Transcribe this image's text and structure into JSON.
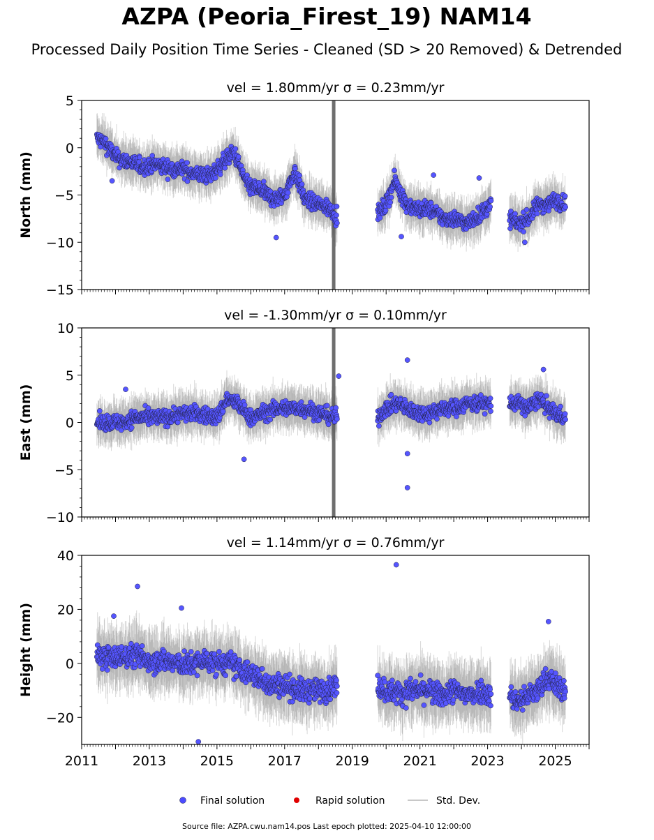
{
  "title": "AZPA (Peoria_Firest_19) NAM14",
  "subtitle": "Processed Daily Position Time Series - Cleaned (SD > 20 Removed) & Detrended",
  "footer": "Source file: AZPA.cwu.nam14.pos  Last epoch plotted: 2025-04-10 12:00:00",
  "legend": {
    "position": "bottom-center",
    "items": [
      {
        "label": "Final solution",
        "color": "#4b4bff"
      },
      {
        "label": "Rapid solution",
        "color": "#e00000"
      },
      {
        "label": "Std. Dev.",
        "color": "#c8c8c8"
      }
    ]
  },
  "colors": {
    "final": "#5555ff",
    "final_edge": "#222244",
    "std": "#8c8c8c"
  },
  "chart_data": [
    {
      "type": "scatter",
      "series": [
        {
          "name": "Final solution"
        }
      ],
      "panel_title": "vel = 1.80mm/yr   σ = 0.23mm/yr",
      "ylabel": "North (mm)",
      "xlim": [
        2011.0,
        2026.0
      ],
      "ylim": [
        -15,
        5
      ],
      "yticks": [
        -15,
        -10,
        -5,
        0,
        5
      ],
      "ytick_labels": [
        "−15",
        "−10",
        "−5",
        "0",
        "5"
      ],
      "anomaly_year": 2018.45,
      "segments": [
        {
          "x": [
            2011.45,
            2011.7,
            2012.0,
            2012.4,
            2012.8,
            2013.2,
            2013.6,
            2014.0,
            2014.4,
            2014.8,
            2015.2,
            2015.5,
            2015.9,
            2016.3,
            2016.7,
            2017.0,
            2017.3,
            2017.6,
            2018.0,
            2018.4,
            2018.55
          ],
          "y": [
            1.0,
            0.5,
            -1.0,
            -1.5,
            -2.0,
            -1.8,
            -2.2,
            -2.3,
            -2.8,
            -3.0,
            -1.5,
            -0.5,
            -4.0,
            -4.5,
            -5.5,
            -5.0,
            -2.5,
            -5.5,
            -6.0,
            -6.5,
            -7.5
          ]
        },
        {
          "x": [
            2019.75,
            2020.0,
            2020.25,
            2020.4,
            2020.6,
            2020.9,
            2021.3,
            2021.7,
            2022.0,
            2022.4,
            2022.8,
            2023.1
          ],
          "y": [
            -7.0,
            -6.0,
            -3.5,
            -4.5,
            -6.0,
            -6.5,
            -6.5,
            -7.5,
            -7.5,
            -8.0,
            -7.0,
            -6.0
          ]
        },
        {
          "x": [
            2023.65,
            2023.9,
            2024.2,
            2024.5,
            2024.8,
            2025.0,
            2025.3
          ],
          "y": [
            -7.5,
            -8.0,
            -7.5,
            -6.0,
            -6.0,
            -5.5,
            -6.0
          ]
        }
      ],
      "noise": 1.0,
      "outliers": [
        {
          "x": 2011.9,
          "y": -3.5
        },
        {
          "x": 2016.75,
          "y": -9.5
        },
        {
          "x": 2020.45,
          "y": -9.4
        },
        {
          "x": 2021.4,
          "y": -2.9
        },
        {
          "x": 2022.75,
          "y": -3.2
        },
        {
          "x": 2024.1,
          "y": -10.0
        }
      ]
    },
    {
      "type": "scatter",
      "series": [
        {
          "name": "Final solution"
        }
      ],
      "panel_title": "vel = -1.30mm/yr   σ = 0.10mm/yr",
      "ylabel": "East (mm)",
      "xlim": [
        2011.0,
        2026.0
      ],
      "ylim": [
        -10,
        10
      ],
      "yticks": [
        -10,
        -5,
        0,
        5,
        10
      ],
      "ytick_labels": [
        "−10",
        "−5",
        "0",
        "5",
        "10"
      ],
      "anomaly_year": 2018.45,
      "segments": [
        {
          "x": [
            2011.45,
            2011.8,
            2012.2,
            2012.6,
            2013.0,
            2013.4,
            2013.8,
            2014.2,
            2014.6,
            2015.0,
            2015.3,
            2015.6,
            2016.0,
            2016.4,
            2016.8,
            2017.2,
            2017.6,
            2018.0,
            2018.55
          ],
          "y": [
            0.0,
            0.0,
            0.0,
            0.5,
            0.5,
            0.5,
            0.8,
            1.0,
            0.8,
            0.5,
            2.5,
            2.0,
            0.5,
            1.0,
            1.5,
            1.5,
            1.5,
            1.0,
            0.5
          ]
        },
        {
          "x": [
            2019.75,
            2020.0,
            2020.3,
            2020.6,
            2020.9,
            2021.3,
            2021.7,
            2022.0,
            2022.4,
            2022.8,
            2023.1
          ],
          "y": [
            0.5,
            1.5,
            2.0,
            1.5,
            1.0,
            1.0,
            1.5,
            1.5,
            2.0,
            2.0,
            2.0
          ]
        },
        {
          "x": [
            2023.65,
            2023.9,
            2024.2,
            2024.5,
            2024.8,
            2025.0,
            2025.3
          ],
          "y": [
            2.0,
            2.0,
            1.5,
            2.5,
            1.5,
            1.0,
            0.5
          ]
        }
      ],
      "noise": 1.0,
      "outliers": [
        {
          "x": 2012.3,
          "y": 3.5
        },
        {
          "x": 2015.8,
          "y": -3.9
        },
        {
          "x": 2020.63,
          "y": 6.6
        },
        {
          "x": 2020.63,
          "y": -6.9
        },
        {
          "x": 2020.63,
          "y": -3.3
        },
        {
          "x": 2024.65,
          "y": 5.6
        },
        {
          "x": 2018.6,
          "y": 4.9
        }
      ]
    },
    {
      "type": "scatter",
      "series": [
        {
          "name": "Final solution"
        }
      ],
      "panel_title": "vel = 1.14mm/yr   σ = 0.76mm/yr",
      "ylabel": "Height (mm)",
      "xlim": [
        2011.0,
        2026.0
      ],
      "ylim": [
        -30,
        40
      ],
      "yticks": [
        -20,
        0,
        20,
        40
      ],
      "ytick_labels": [
        "−20",
        "0",
        "20",
        "40"
      ],
      "xticks": [
        2011,
        2013,
        2015,
        2017,
        2019,
        2021,
        2023,
        2025
      ],
      "xtick_labels": [
        "2011",
        "2013",
        "2015",
        "2017",
        "2019",
        "2021",
        "2023",
        "2025"
      ],
      "segments": [
        {
          "x": [
            2011.45,
            2011.8,
            2012.2,
            2012.6,
            2013.0,
            2013.4,
            2013.8,
            2014.2,
            2014.6,
            2015.0,
            2015.4,
            2015.8,
            2016.2,
            2016.6,
            2017.0,
            2017.4,
            2017.8,
            2018.2,
            2018.55
          ],
          "y": [
            3.0,
            2.0,
            2.5,
            3.0,
            1.0,
            1.0,
            0.0,
            -0.5,
            1.0,
            0.0,
            0.0,
            -3.0,
            -5.0,
            -8.0,
            -8.0,
            -10.0,
            -10.0,
            -10.0,
            -8.0
          ]
        },
        {
          "x": [
            2019.75,
            2020.0,
            2020.4,
            2020.8,
            2021.2,
            2021.6,
            2022.0,
            2022.4,
            2022.8,
            2023.1
          ],
          "y": [
            -8.0,
            -10.0,
            -11.0,
            -10.0,
            -10.0,
            -12.0,
            -10.0,
            -12.0,
            -10.0,
            -12.0
          ]
        },
        {
          "x": [
            2023.65,
            2023.9,
            2024.2,
            2024.5,
            2024.8,
            2025.0,
            2025.3
          ],
          "y": [
            -12.0,
            -14.0,
            -12.0,
            -10.0,
            -5.0,
            -8.0,
            -10.0
          ]
        }
      ],
      "noise": 5.0,
      "outliers": [
        {
          "x": 2012.65,
          "y": 28.5
        },
        {
          "x": 2014.45,
          "y": -29.0
        },
        {
          "x": 2020.3,
          "y": 36.5
        },
        {
          "x": 2024.8,
          "y": 15.5
        },
        {
          "x": 2013.95,
          "y": 20.5
        },
        {
          "x": 2011.95,
          "y": 17.5
        }
      ]
    }
  ]
}
